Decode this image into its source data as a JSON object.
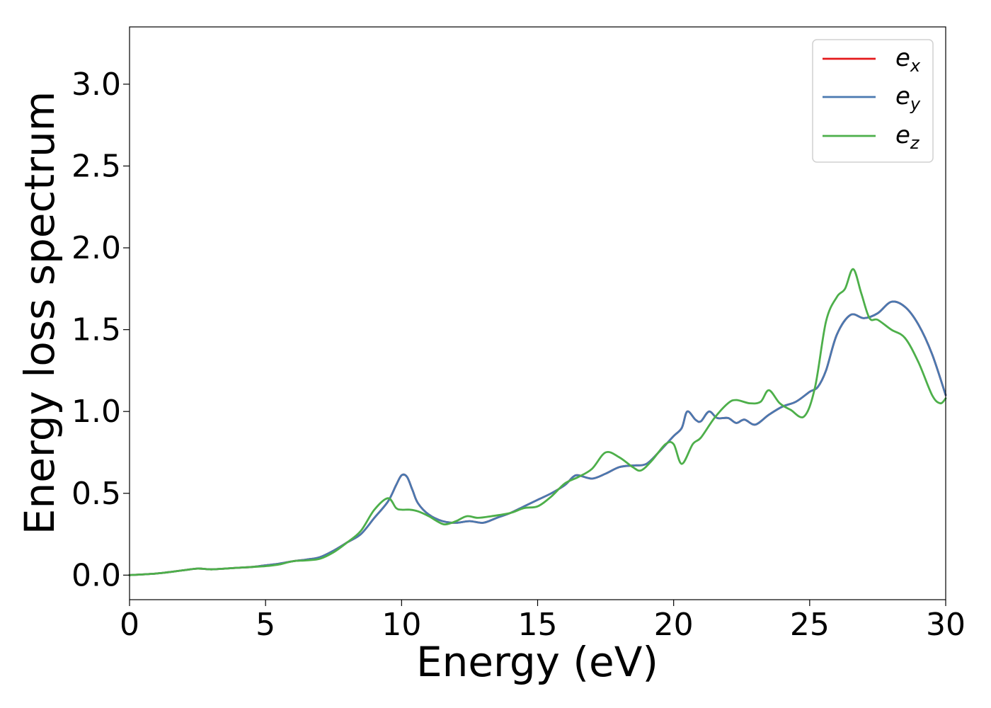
{
  "chart_data": {
    "type": "line",
    "xlabel": "Energy (eV)",
    "ylabel": "Energy loss spectrum",
    "xlim": [
      0,
      30
    ],
    "ylim": [
      -0.15,
      3.35
    ],
    "xticks": [
      0,
      5,
      10,
      15,
      20,
      25,
      30
    ],
    "xtick_labels": [
      "0",
      "5",
      "10",
      "15",
      "20",
      "25",
      "30"
    ],
    "yticks": [
      0.0,
      0.5,
      1.0,
      1.5,
      2.0,
      2.5,
      3.0
    ],
    "ytick_labels": [
      "0.0",
      "0.5",
      "1.0",
      "1.5",
      "2.0",
      "2.5",
      "3.0"
    ],
    "grid": false,
    "legend_position": "top-right",
    "series": [
      {
        "name": "e",
        "subscript": "x",
        "color": "#e41a1c",
        "x": [
          0,
          1,
          2,
          2.5,
          3,
          3.5,
          4,
          4.5,
          5,
          5.5,
          6,
          6.5,
          7,
          7.5,
          8,
          8.5,
          9,
          9.5,
          9.8,
          10,
          10.2,
          10.4,
          10.6,
          11,
          11.5,
          12,
          12.5,
          13,
          13.5,
          14,
          14.5,
          15,
          15.5,
          16,
          16.3,
          16.5,
          17,
          17.5,
          18,
          18.5,
          19,
          19.5,
          20,
          20.3,
          20.5,
          20.8,
          21,
          21.3,
          21.6,
          22,
          22.3,
          22.6,
          23,
          23.5,
          24,
          24.5,
          25,
          25.3,
          25.6,
          26,
          26.5,
          27,
          27.5,
          28,
          28.5,
          29,
          29.5,
          30
        ],
        "values": [
          0,
          0.01,
          0.03,
          0.04,
          0.035,
          0.04,
          0.045,
          0.05,
          0.06,
          0.07,
          0.085,
          0.095,
          0.11,
          0.15,
          0.2,
          0.25,
          0.35,
          0.45,
          0.55,
          0.61,
          0.6,
          0.52,
          0.44,
          0.37,
          0.33,
          0.32,
          0.33,
          0.32,
          0.35,
          0.38,
          0.42,
          0.46,
          0.5,
          0.55,
          0.6,
          0.61,
          0.59,
          0.62,
          0.66,
          0.67,
          0.68,
          0.76,
          0.85,
          0.9,
          1.0,
          0.95,
          0.94,
          1.0,
          0.96,
          0.96,
          0.93,
          0.95,
          0.92,
          0.98,
          1.03,
          1.06,
          1.12,
          1.15,
          1.25,
          1.47,
          1.59,
          1.57,
          1.6,
          1.67,
          1.64,
          1.53,
          1.35,
          1.1
        ]
      },
      {
        "name": "e",
        "subscript": "y",
        "color": "#4a79b0",
        "x": [
          0,
          1,
          2,
          2.5,
          3,
          3.5,
          4,
          4.5,
          5,
          5.5,
          6,
          6.5,
          7,
          7.5,
          8,
          8.5,
          9,
          9.5,
          9.8,
          10,
          10.2,
          10.4,
          10.6,
          11,
          11.5,
          12,
          12.5,
          13,
          13.5,
          14,
          14.5,
          15,
          15.5,
          16,
          16.3,
          16.5,
          17,
          17.5,
          18,
          18.5,
          19,
          19.5,
          20,
          20.3,
          20.5,
          20.8,
          21,
          21.3,
          21.6,
          22,
          22.3,
          22.6,
          23,
          23.5,
          24,
          24.5,
          25,
          25.3,
          25.6,
          26,
          26.5,
          27,
          27.5,
          28,
          28.5,
          29,
          29.5,
          30
        ],
        "values": [
          0,
          0.01,
          0.03,
          0.04,
          0.035,
          0.04,
          0.045,
          0.05,
          0.06,
          0.07,
          0.085,
          0.095,
          0.11,
          0.15,
          0.2,
          0.25,
          0.35,
          0.45,
          0.55,
          0.61,
          0.6,
          0.52,
          0.44,
          0.37,
          0.33,
          0.32,
          0.33,
          0.32,
          0.35,
          0.38,
          0.42,
          0.46,
          0.5,
          0.55,
          0.6,
          0.61,
          0.59,
          0.62,
          0.66,
          0.67,
          0.68,
          0.76,
          0.85,
          0.9,
          1.0,
          0.95,
          0.94,
          1.0,
          0.96,
          0.96,
          0.93,
          0.95,
          0.92,
          0.98,
          1.03,
          1.06,
          1.12,
          1.15,
          1.25,
          1.47,
          1.59,
          1.57,
          1.6,
          1.67,
          1.64,
          1.53,
          1.35,
          1.1
        ]
      },
      {
        "name": "e",
        "subscript": "z",
        "color": "#4daf4a",
        "x": [
          0,
          1,
          2,
          2.5,
          3,
          3.5,
          4,
          4.5,
          5,
          5.5,
          6,
          6.5,
          7,
          7.5,
          8,
          8.5,
          9,
          9.5,
          9.8,
          10,
          10.3,
          10.6,
          11,
          11.3,
          11.6,
          12,
          12.4,
          12.8,
          13.3,
          14,
          14.5,
          15,
          15.5,
          16,
          16.5,
          17,
          17.5,
          18,
          18.5,
          18.8,
          19.2,
          19.7,
          20,
          20.3,
          20.7,
          21,
          21.5,
          22,
          22.3,
          22.8,
          23.2,
          23.5,
          23.9,
          24.3,
          24.8,
          25.2,
          25.6,
          26,
          26.3,
          26.6,
          26.9,
          27.2,
          27.5,
          28,
          28.5,
          29,
          29.5,
          29.8,
          30
        ],
        "values": [
          0,
          0.01,
          0.03,
          0.04,
          0.035,
          0.04,
          0.045,
          0.05,
          0.055,
          0.065,
          0.085,
          0.09,
          0.1,
          0.14,
          0.2,
          0.27,
          0.4,
          0.47,
          0.41,
          0.4,
          0.4,
          0.39,
          0.36,
          0.33,
          0.31,
          0.33,
          0.36,
          0.35,
          0.36,
          0.38,
          0.41,
          0.42,
          0.48,
          0.56,
          0.6,
          0.65,
          0.75,
          0.72,
          0.66,
          0.64,
          0.7,
          0.8,
          0.8,
          0.68,
          0.8,
          0.84,
          0.96,
          1.05,
          1.07,
          1.05,
          1.06,
          1.13,
          1.05,
          1.01,
          0.97,
          1.15,
          1.55,
          1.7,
          1.75,
          1.87,
          1.72,
          1.57,
          1.56,
          1.5,
          1.45,
          1.3,
          1.1,
          1.05,
          1.08
        ]
      }
    ]
  }
}
